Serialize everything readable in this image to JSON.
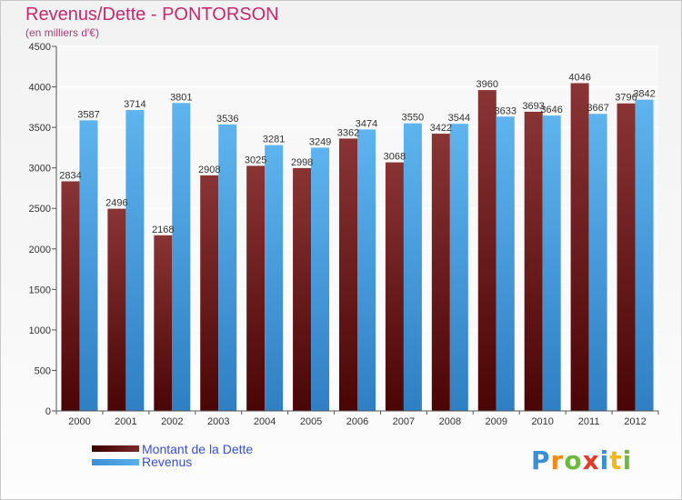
{
  "chart_data": {
    "type": "bar",
    "title": "Revenus/Dette - PONTORSON",
    "subtitle": "(en milliers d'€)",
    "xlabel": "",
    "ylabel": "",
    "ylim": [
      0,
      4500
    ],
    "yticks": [
      0,
      500,
      1000,
      1500,
      2000,
      2500,
      3000,
      3500,
      4000,
      4500
    ],
    "grid": true,
    "categories": [
      "2000",
      "2001",
      "2002",
      "2003",
      "2004",
      "2005",
      "2006",
      "2007",
      "2008",
      "2009",
      "2010",
      "2011",
      "2012"
    ],
    "series": [
      {
        "name": "Montant de la Dette",
        "color": "#6e1c1c",
        "values": [
          2834,
          2496,
          2168,
          2908,
          3025,
          2998,
          3362,
          3068,
          3422,
          3960,
          3693,
          4046,
          3796
        ]
      },
      {
        "name": "Revenus",
        "color": "#4aa3e6",
        "values": [
          3587,
          3714,
          3801,
          3536,
          3281,
          3249,
          3474,
          3550,
          3544,
          3633,
          3646,
          3667,
          3842
        ]
      }
    ],
    "legend_position": "bottom-left"
  },
  "brand": {
    "text": "Proxiti",
    "letter_colors": [
      "#3a8fd6",
      "#f08a1c",
      "#6dbb3a",
      "#e23b2e",
      "#3a8fd6",
      "#f2b81c",
      "#6dbb3a"
    ]
  }
}
